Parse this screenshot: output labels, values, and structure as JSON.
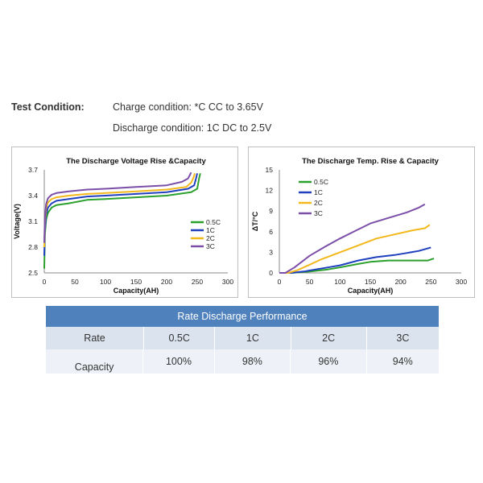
{
  "conditions": {
    "label": "Test Condition:",
    "charge": "Charge condition: *C CC to 3.65V",
    "discharge": "Discharge condition: 1C DC to 2.5V"
  },
  "chart_data": [
    {
      "type": "line",
      "title": "The Discharge Voltage Rise &Capacity",
      "xlabel": "Capacity(AH)",
      "ylabel": "Voltage(V)",
      "xlim": [
        0,
        300
      ],
      "ylim": [
        2.5,
        3.7
      ],
      "xticks": [
        0,
        50,
        100,
        150,
        200,
        250,
        300
      ],
      "yticks": [
        2.5,
        2.8,
        3.1,
        3.4,
        3.7
      ],
      "ytick_labels": [
        "2.5",
        "2.8",
        "3.1",
        "3.4",
        "3.7"
      ],
      "legend_position": "right",
      "grid": false,
      "series": [
        {
          "name": "0.5C",
          "color": "#2ca02c",
          "x": [
            0,
            1,
            3,
            6,
            12,
            20,
            40,
            70,
            100,
            150,
            200,
            240,
            250,
            253,
            255
          ],
          "y": [
            2.55,
            2.95,
            3.12,
            3.2,
            3.26,
            3.29,
            3.31,
            3.35,
            3.36,
            3.38,
            3.4,
            3.44,
            3.48,
            3.6,
            3.66
          ]
        },
        {
          "name": "1C",
          "color": "#1f3fbf",
          "x": [
            0,
            1,
            3,
            6,
            12,
            20,
            40,
            70,
            100,
            150,
            200,
            235,
            245,
            248,
            250
          ],
          "y": [
            2.7,
            3.0,
            3.18,
            3.26,
            3.31,
            3.34,
            3.36,
            3.39,
            3.4,
            3.42,
            3.44,
            3.48,
            3.52,
            3.6,
            3.66
          ]
        },
        {
          "name": "2C",
          "color": "#f2b81c",
          "x": [
            0,
            1,
            3,
            6,
            12,
            20,
            40,
            70,
            100,
            150,
            200,
            232,
            240,
            244,
            246
          ],
          "y": [
            2.8,
            3.1,
            3.25,
            3.32,
            3.36,
            3.38,
            3.4,
            3.42,
            3.43,
            3.45,
            3.47,
            3.5,
            3.55,
            3.61,
            3.66
          ]
        },
        {
          "name": "3C",
          "color": "#7b4fa8",
          "x": [
            0,
            1,
            3,
            6,
            12,
            20,
            40,
            70,
            100,
            150,
            200,
            225,
            235,
            238,
            240
          ],
          "y": [
            2.85,
            3.15,
            3.3,
            3.37,
            3.41,
            3.43,
            3.45,
            3.47,
            3.48,
            3.5,
            3.52,
            3.56,
            3.6,
            3.64,
            3.67
          ]
        }
      ]
    },
    {
      "type": "line",
      "title": "The Discharge Temp. Rise & Capacity",
      "xlabel": "Capacity(AH)",
      "ylabel": "ΔT/°C",
      "xlim": [
        0,
        300
      ],
      "ylim": [
        0,
        15
      ],
      "xticks": [
        0,
        50,
        100,
        150,
        200,
        250,
        300
      ],
      "yticks": [
        0,
        3,
        6,
        9,
        12,
        15
      ],
      "legend_position": "top-left",
      "grid": false,
      "series": [
        {
          "name": "0.5C",
          "color": "#2ca02c",
          "x": [
            0,
            20,
            50,
            80,
            100,
            130,
            150,
            180,
            200,
            230,
            245,
            255
          ],
          "y": [
            0,
            0,
            0.2,
            0.5,
            0.8,
            1.3,
            1.6,
            1.8,
            1.8,
            1.8,
            1.8,
            2.1
          ]
        },
        {
          "name": "1C",
          "color": "#1f3fbf",
          "x": [
            0,
            20,
            40,
            60,
            80,
            100,
            130,
            160,
            190,
            210,
            230,
            250
          ],
          "y": [
            0,
            0,
            0.2,
            0.5,
            0.8,
            1.1,
            1.8,
            2.3,
            2.6,
            2.9,
            3.2,
            3.7
          ]
        },
        {
          "name": "2C",
          "color": "#f2b81c",
          "x": [
            0,
            15,
            30,
            50,
            70,
            100,
            130,
            160,
            190,
            220,
            240,
            248
          ],
          "y": [
            0,
            0,
            0.4,
            1.2,
            2.0,
            3.0,
            4.0,
            5.0,
            5.6,
            6.2,
            6.5,
            7.0
          ]
        },
        {
          "name": "3C",
          "color": "#7b4fa8",
          "x": [
            0,
            10,
            25,
            50,
            75,
            100,
            125,
            150,
            180,
            210,
            230,
            240
          ],
          "y": [
            0,
            0,
            0.8,
            2.5,
            3.8,
            5.0,
            6.1,
            7.2,
            8.0,
            8.8,
            9.5,
            10.0
          ]
        }
      ]
    },
    {
      "type": "table",
      "title": "Rate Discharge Performance",
      "columns": [
        "Rate",
        "0.5C",
        "1C",
        "2C",
        "3C"
      ],
      "rows": [
        [
          "Capacity",
          "100%",
          "98%",
          "96%",
          "94%"
        ]
      ]
    }
  ]
}
